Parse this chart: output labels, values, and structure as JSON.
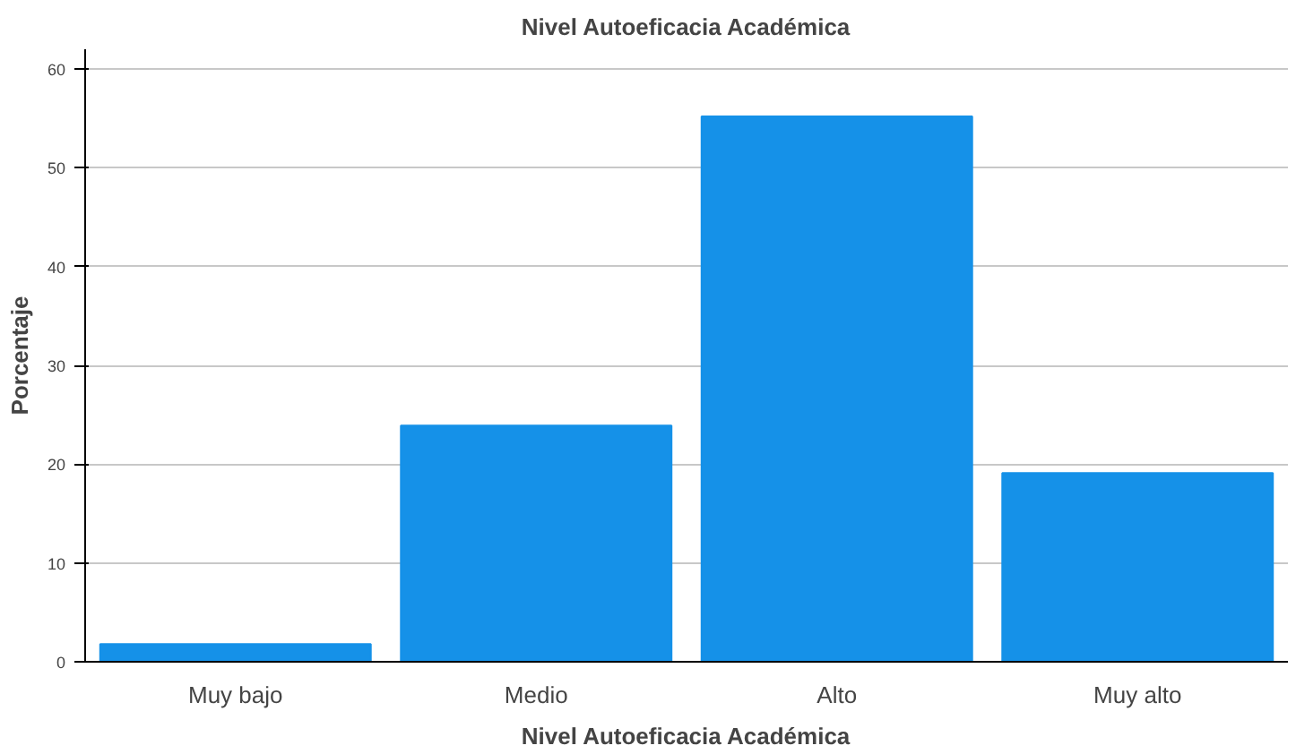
{
  "chart_data": {
    "type": "bar",
    "title": "Nivel Autoeficacia Académica",
    "xlabel": "Nivel Autoeficacia Académica",
    "ylabel": "Porcentaje",
    "categories": [
      "Muy bajo",
      "Medio",
      "Alto",
      "Muy alto"
    ],
    "values": [
      1.8,
      23.9,
      55.2,
      19.1
    ],
    "color": "#1591e8",
    "ylim": [
      0,
      62
    ],
    "yticks": [
      0,
      10,
      20,
      30,
      40,
      50,
      60
    ],
    "grid": "y"
  }
}
